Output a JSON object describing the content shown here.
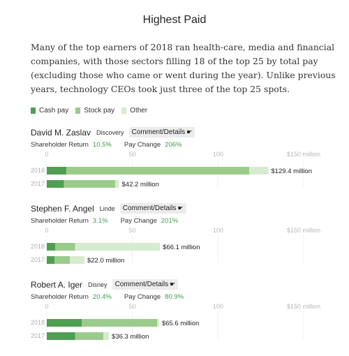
{
  "page": {
    "title": "Highest Paid",
    "intro": "Many of the top earners of 2018 ran health-care, media and financial companies, with those sectors filling 18 of the top 25 by total pay (excluding those who came or went during the year). Unlike previous years, technology CEOs took just three of the top 25 spots."
  },
  "legend": [
    {
      "label": "Cash pay",
      "color": "#4f9f52"
    },
    {
      "label": "Stock pay",
      "color": "#9bcb8b"
    },
    {
      "label": "Other",
      "color": "#d6ebcf"
    }
  ],
  "labels": {
    "details_button": "Comment/Details",
    "shareholder_return": "Shareholder Return",
    "pay_change": "Pay Change"
  },
  "chart_data": {
    "type": "bar",
    "stacked": true,
    "orientation": "horizontal",
    "unit": "$ million",
    "xlim": [
      0,
      150
    ],
    "x_ticks": [
      "0",
      "50",
      "100",
      "$150 million"
    ],
    "x_tick_values": [
      0,
      50,
      100,
      150
    ],
    "series_names": [
      "Cash pay",
      "Stock pay",
      "Other"
    ],
    "executives": [
      {
        "name": "David M. Zaslav",
        "company": "Discovery",
        "shareholder_return": "10.5%",
        "pay_change": "206%",
        "years": [
          {
            "year": "2018",
            "cash": 11.5,
            "stock": 106.7,
            "other": 11.2,
            "total": 129.4,
            "total_label": "$129.4 million"
          },
          {
            "year": "2017",
            "cash": 10.0,
            "stock": 30.0,
            "other": 2.2,
            "total": 42.2,
            "total_label": "$42.2 million"
          }
        ]
      },
      {
        "name": "Stephen F. Angel",
        "company": "Linde",
        "shareholder_return": "3.1%",
        "pay_change": "201%",
        "years": [
          {
            "year": "2018",
            "cash": 5.0,
            "stock": 11.5,
            "other": 49.6,
            "total": 66.1,
            "total_label": "$66.1 million"
          },
          {
            "year": "2017",
            "cash": 4.5,
            "stock": 9.0,
            "other": 8.5,
            "total": 22.0,
            "total_label": "$22.0 million"
          }
        ]
      },
      {
        "name": "Robert A. Iger",
        "company": "Disney",
        "shareholder_return": "20.4%",
        "pay_change": "80.9%",
        "years": [
          {
            "year": "2018",
            "cash": 20.5,
            "stock": 44.0,
            "other": 1.1,
            "total": 65.6,
            "total_label": "$65.6 million"
          },
          {
            "year": "2017",
            "cash": 16.5,
            "stock": 16.5,
            "other": 3.3,
            "total": 36.3,
            "total_label": "$36.3 million"
          }
        ]
      }
    ]
  }
}
